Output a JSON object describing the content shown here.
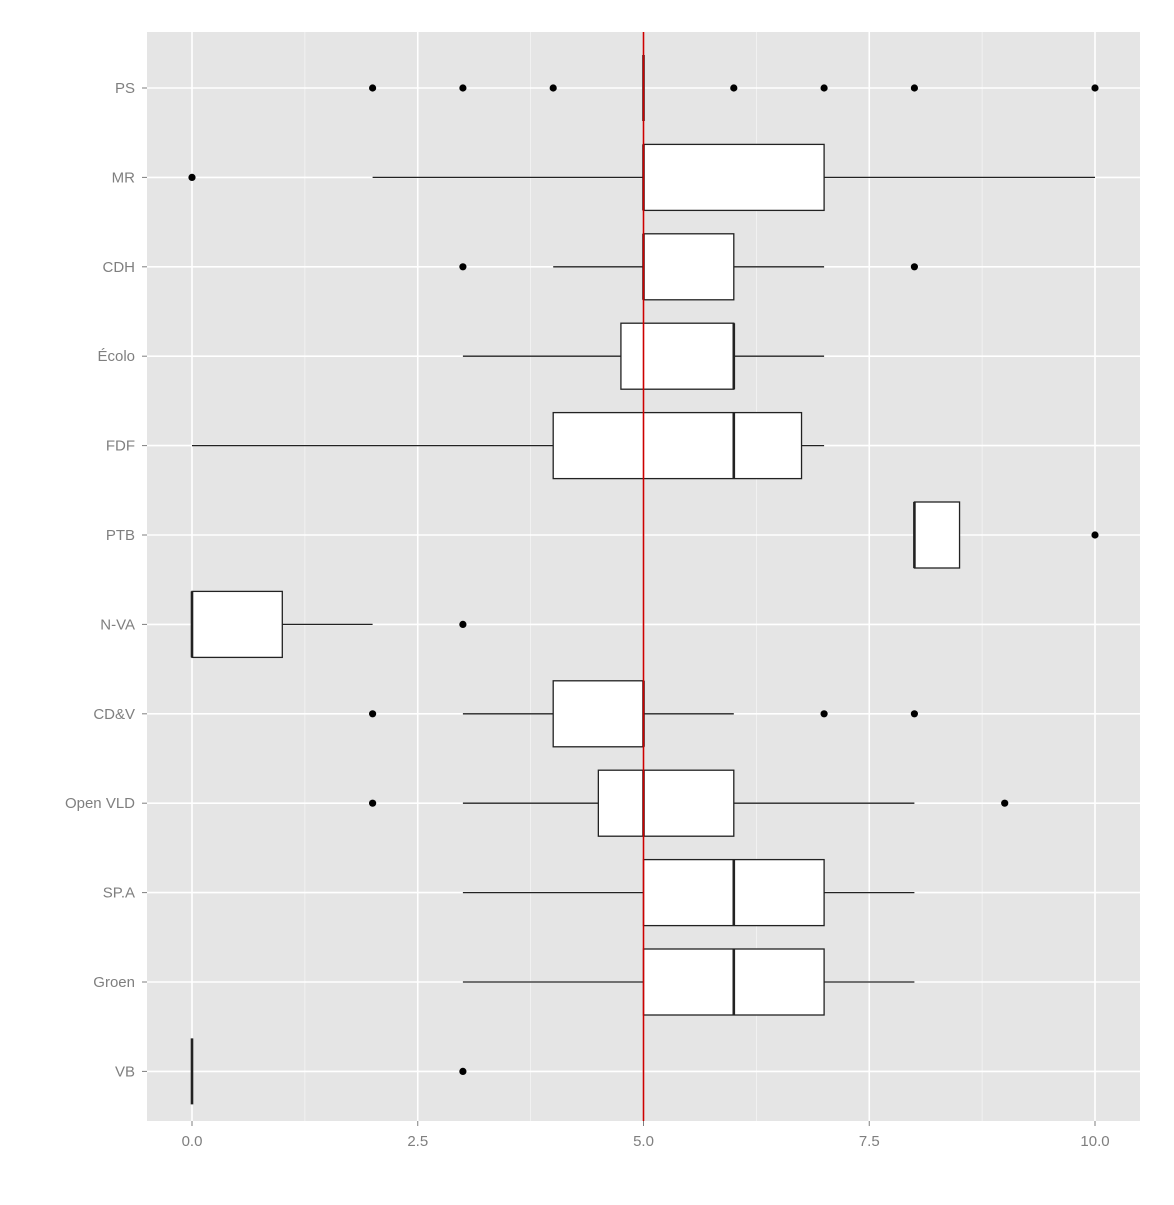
{
  "chart_data": {
    "type": "boxplot",
    "orientation": "horizontal",
    "title": "",
    "xlabel": "",
    "ylabel": "",
    "xlim": [
      -0.2,
      10.5
    ],
    "x_ticks": [
      0,
      2.5,
      5,
      7.5,
      10
    ],
    "x_tick_labels": [
      "0.0",
      "2.5",
      "5.0",
      "7.5",
      "10.0"
    ],
    "grid": true,
    "reference_line": {
      "x": 5,
      "color": "#cc0000"
    },
    "colors": {
      "panel_bg": "#e5e5e5",
      "grid": "#ffffff",
      "box_fill": "#ffffff",
      "box_stroke": "#222222",
      "tick_text": "#7f7f7f"
    },
    "categories": [
      "PS",
      "MR",
      "CDH",
      "Écolo",
      "FDF",
      "PTB",
      "N-VA",
      "CD&V",
      "Open VLD",
      "SP.A",
      "Groen",
      "VB"
    ],
    "boxes": [
      {
        "category": "PS",
        "whisker_low": 5,
        "q1": 5,
        "median": 5,
        "q3": 5,
        "whisker_high": 5,
        "outliers": [
          2,
          3,
          4,
          6,
          7,
          8,
          10
        ]
      },
      {
        "category": "MR",
        "whisker_low": 2,
        "q1": 5,
        "median": 5,
        "q3": 7,
        "whisker_high": 10,
        "outliers": [
          0
        ]
      },
      {
        "category": "CDH",
        "whisker_low": 4,
        "q1": 5,
        "median": 5,
        "q3": 6,
        "whisker_high": 7,
        "outliers": [
          3,
          8
        ]
      },
      {
        "category": "Écolo",
        "whisker_low": 3,
        "q1": 4.75,
        "median": 6,
        "q3": 6,
        "whisker_high": 7,
        "outliers": []
      },
      {
        "category": "FDF",
        "whisker_low": 0,
        "q1": 4,
        "median": 6,
        "q3": 6.75,
        "whisker_high": 7,
        "outliers": []
      },
      {
        "category": "PTB",
        "whisker_low": 8,
        "q1": 8,
        "median": 8,
        "q3": 8.5,
        "whisker_high": 8.5,
        "outliers": [
          10
        ]
      },
      {
        "category": "N-VA",
        "whisker_low": 0,
        "q1": 0,
        "median": 0,
        "q3": 1,
        "whisker_high": 2,
        "outliers": [
          3
        ]
      },
      {
        "category": "CD&V",
        "whisker_low": 3,
        "q1": 4,
        "median": 5,
        "q3": 5,
        "whisker_high": 6,
        "outliers": [
          2,
          7,
          8
        ]
      },
      {
        "category": "Open VLD",
        "whisker_low": 3,
        "q1": 4.5,
        "median": 5,
        "q3": 6,
        "whisker_high": 8,
        "outliers": [
          2,
          9
        ]
      },
      {
        "category": "SP.A",
        "whisker_low": 3,
        "q1": 5,
        "median": 6,
        "q3": 7,
        "whisker_high": 8,
        "outliers": []
      },
      {
        "category": "Groen",
        "whisker_low": 3,
        "q1": 5,
        "median": 6,
        "q3": 7,
        "whisker_high": 8,
        "outliers": []
      },
      {
        "category": "VB",
        "whisker_low": 0,
        "q1": 0,
        "median": 0,
        "q3": 0,
        "whisker_high": 0,
        "outliers": [
          3
        ]
      }
    ]
  }
}
